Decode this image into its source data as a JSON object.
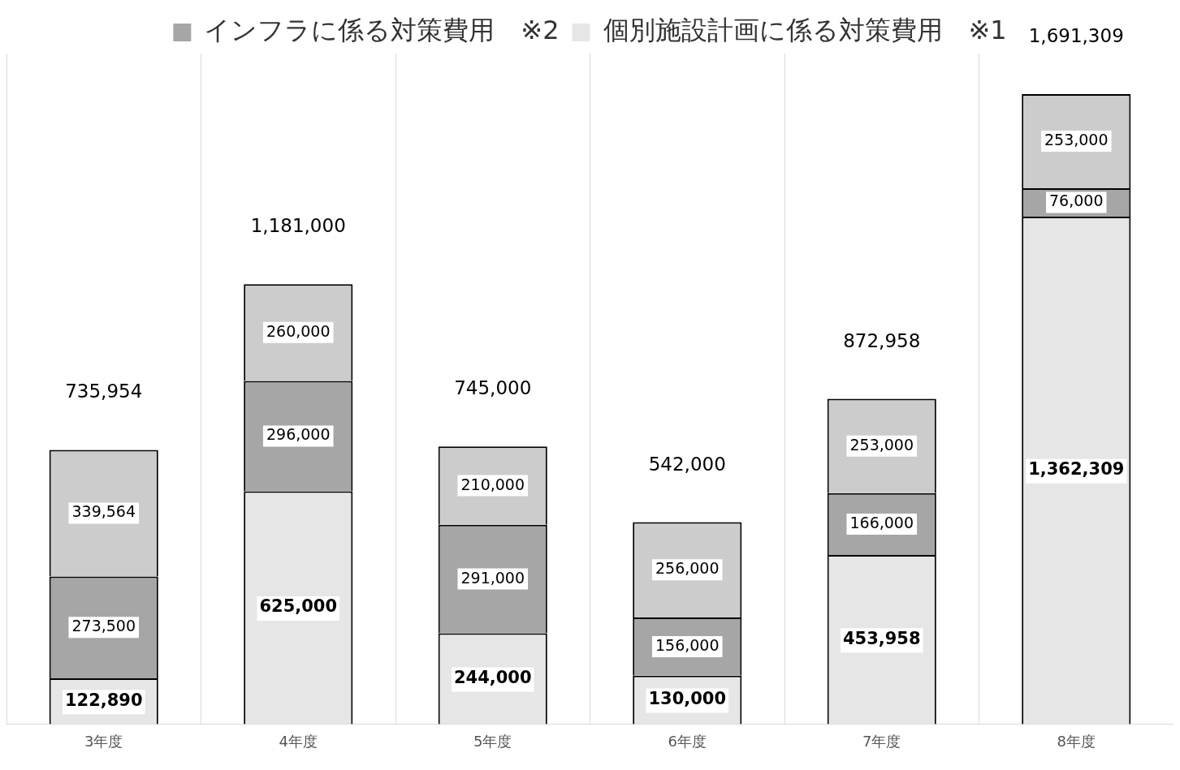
{
  "chart_data": {
    "type": "bar",
    "stacked": true,
    "categories": [
      "3年度",
      "4年度",
      "5年度",
      "6年度",
      "7年度",
      "8年度"
    ],
    "series": [
      {
        "name": "個別施設計画に係る対策費用　※1",
        "color": "#e6e6e6",
        "values": [
          122890,
          625000,
          244000,
          130000,
          453958,
          1362309
        ],
        "value_labels": [
          "122,890",
          "625,000",
          "244,000",
          "130,000",
          "453,958",
          "1,362,309"
        ]
      },
      {
        "name": "インフラに係る対策費用　※2",
        "color": "#a6a6a6",
        "values": [
          273500,
          296000,
          291000,
          156000,
          166000,
          76000
        ],
        "value_labels": [
          "273,500",
          "296,000",
          "291,000",
          "156,000",
          "166,000",
          "76,000"
        ]
      },
      {
        "color": "#cccccc",
        "values": [
          339564,
          260000,
          210000,
          256000,
          253000,
          253000
        ],
        "value_labels": [
          "339,564",
          "260,000",
          "210,000",
          "256,000",
          "253,000",
          "253,000"
        ]
      }
    ],
    "totals": [
      "735,954",
      "1,181,000",
      "745,000",
      "542,000",
      "872,958",
      "1,691,309"
    ],
    "legend": "top",
    "grid": "x",
    "tick_labels": "x"
  }
}
